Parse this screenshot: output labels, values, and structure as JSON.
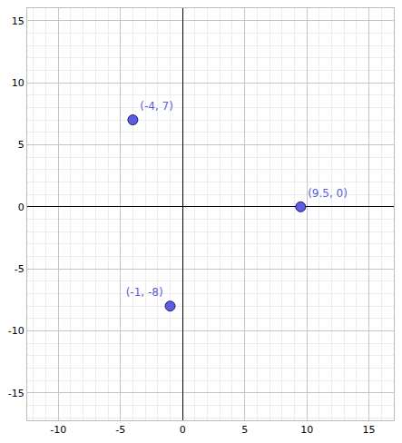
{
  "chart_data": {
    "type": "scatter",
    "x": [
      -4,
      9.5,
      -1
    ],
    "values": [
      7,
      0,
      -8
    ],
    "value_labels": [
      "(-4, 7)",
      "(9.5, 0)",
      "(-1, -8)"
    ],
    "data_labels": true,
    "color": "#5c5ce0",
    "marker": "circle",
    "xlim": [
      -12.5,
      17
    ],
    "xticks": [
      -10,
      -5,
      0,
      5,
      10,
      15
    ],
    "ylim": [
      -17.2,
      16
    ],
    "yticks": [
      -15,
      -10,
      -5,
      0,
      5,
      10,
      15
    ],
    "grid": true
  }
}
